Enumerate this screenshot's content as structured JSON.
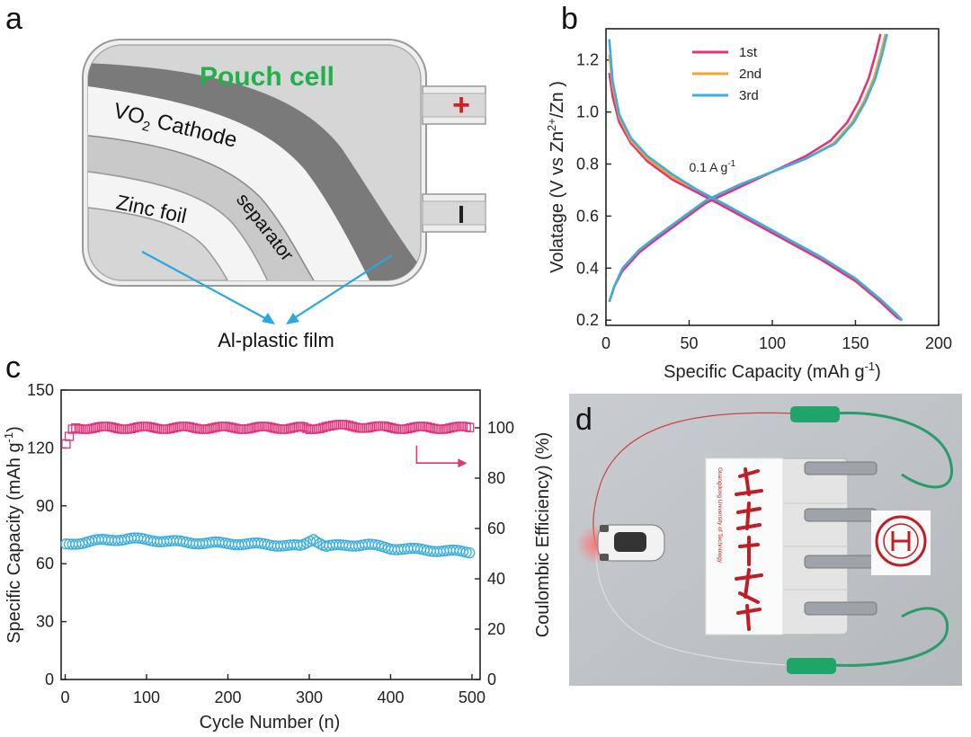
{
  "panels": {
    "a": "a",
    "b": "b",
    "c": "c",
    "d": "d"
  },
  "panel_a": {
    "title": "Pouch cell",
    "cathode_label": "VO",
    "cathode_sub": "2",
    "cathode_rest": " Cathode",
    "zinc_label": "Zinc foil",
    "separator_label": "separator",
    "film_label": "Al-plastic film",
    "plus_symbol": "+",
    "minus_symbol": "I",
    "colors": {
      "title": "#22b04b",
      "cathode": "#7a7a7a",
      "arrow": "#2aa7df",
      "plus": "#d42020"
    }
  },
  "panel_d": {
    "logo_text": "Guangdong University of Technology",
    "colors": {
      "clip": "#1fa56a",
      "wire": "#2a9b6a",
      "logo": "#c01d26"
    }
  },
  "chart_data": [
    {
      "type": "line",
      "panel": "b",
      "xlabel": "Specific Capacity (mAh g",
      "xlabel_sup": "-1",
      "xlabel_end": ")",
      "ylabel": "Volatage (V vs Zn",
      "ylabel_sup": "2+",
      "ylabel_end": "/Zn )",
      "xlim": [
        0,
        200
      ],
      "ylim": [
        0.18,
        1.32
      ],
      "xticks": [
        "0",
        "50",
        "100",
        "150",
        "200"
      ],
      "yticks": [
        "0.2",
        "0.4",
        "0.6",
        "0.8",
        "1.0",
        "1.2"
      ],
      "annotation": "0.1 A g",
      "annotation_sup": "-1",
      "annotation_pos": [
        50,
        0.77
      ],
      "legend_position": "top-center",
      "series": [
        {
          "name": "1st",
          "color": "#e0337a",
          "charge": [
            [
              2,
              0.27
            ],
            [
              5,
              0.33
            ],
            [
              10,
              0.39
            ],
            [
              20,
              0.46
            ],
            [
              30,
              0.51
            ],
            [
              45,
              0.58
            ],
            [
              60,
              0.65
            ],
            [
              80,
              0.71
            ],
            [
              100,
              0.77
            ],
            [
              120,
              0.83
            ],
            [
              135,
              0.89
            ],
            [
              145,
              0.96
            ],
            [
              152,
              1.04
            ],
            [
              158,
              1.13
            ],
            [
              162,
              1.22
            ],
            [
              165,
              1.3
            ]
          ],
          "discharge": [
            [
              2,
              1.15
            ],
            [
              4,
              1.06
            ],
            [
              8,
              0.96
            ],
            [
              15,
              0.88
            ],
            [
              25,
              0.81
            ],
            [
              40,
              0.74
            ],
            [
              55,
              0.69
            ],
            [
              70,
              0.64
            ],
            [
              90,
              0.57
            ],
            [
              110,
              0.5
            ],
            [
              130,
              0.43
            ],
            [
              150,
              0.35
            ],
            [
              165,
              0.27
            ],
            [
              175,
              0.21
            ],
            [
              178,
              0.2
            ]
          ]
        },
        {
          "name": "2nd",
          "color": "#f0a531",
          "charge": [
            [
              2,
              0.27
            ],
            [
              5,
              0.33
            ],
            [
              10,
              0.4
            ],
            [
              20,
              0.47
            ],
            [
              30,
              0.52
            ],
            [
              45,
              0.59
            ],
            [
              60,
              0.66
            ],
            [
              80,
              0.72
            ],
            [
              100,
              0.77
            ],
            [
              120,
              0.82
            ],
            [
              137,
              0.88
            ],
            [
              148,
              0.96
            ],
            [
              155,
              1.04
            ],
            [
              161,
              1.13
            ],
            [
              165,
              1.22
            ],
            [
              168,
              1.3
            ]
          ],
          "discharge": [
            [
              2,
              1.22
            ],
            [
              4,
              1.1
            ],
            [
              8,
              0.98
            ],
            [
              15,
              0.89
            ],
            [
              25,
              0.82
            ],
            [
              40,
              0.75
            ],
            [
              55,
              0.7
            ],
            [
              70,
              0.65
            ],
            [
              90,
              0.58
            ],
            [
              110,
              0.51
            ],
            [
              130,
              0.44
            ],
            [
              150,
              0.36
            ],
            [
              165,
              0.28
            ],
            [
              175,
              0.22
            ],
            [
              178,
              0.2
            ]
          ]
        },
        {
          "name": "3rd",
          "color": "#3aaee0",
          "charge": [
            [
              2,
              0.27
            ],
            [
              5,
              0.33
            ],
            [
              10,
              0.4
            ],
            [
              20,
              0.47
            ],
            [
              30,
              0.52
            ],
            [
              45,
              0.59
            ],
            [
              60,
              0.66
            ],
            [
              80,
              0.72
            ],
            [
              100,
              0.77
            ],
            [
              120,
              0.82
            ],
            [
              138,
              0.88
            ],
            [
              149,
              0.96
            ],
            [
              156,
              1.04
            ],
            [
              162,
              1.13
            ],
            [
              166,
              1.22
            ],
            [
              169,
              1.3
            ]
          ],
          "discharge": [
            [
              2,
              1.28
            ],
            [
              4,
              1.12
            ],
            [
              8,
              0.99
            ],
            [
              15,
              0.9
            ],
            [
              25,
              0.83
            ],
            [
              40,
              0.76
            ],
            [
              55,
              0.7
            ],
            [
              70,
              0.65
            ],
            [
              90,
              0.58
            ],
            [
              110,
              0.51
            ],
            [
              130,
              0.44
            ],
            [
              150,
              0.36
            ],
            [
              165,
              0.28
            ],
            [
              175,
              0.22
            ],
            [
              178,
              0.2
            ]
          ]
        }
      ]
    },
    {
      "type": "scatter",
      "panel": "c",
      "xlabel": "Cycle Number (n)",
      "ylabel": "Specific Capacity (mAh g",
      "ylabel_sup": "-1",
      "ylabel_end": ")",
      "y2label": "Coulombic Efficiency) (%)",
      "xlim": [
        -5,
        510
      ],
      "ylim": [
        0,
        150
      ],
      "y2lim": [
        0,
        115
      ],
      "xticks": [
        "0",
        "100",
        "200",
        "300",
        "400",
        "500"
      ],
      "yticks": [
        "0",
        "30",
        "60",
        "90",
        "120",
        "150"
      ],
      "y2ticks": [
        "0",
        "20",
        "40",
        "60",
        "80",
        "100"
      ],
      "series": [
        {
          "name": "Coulombic efficiency",
          "axis": "right",
          "color": "#e0337a",
          "marker": "square",
          "x_range": [
            1,
            500
          ],
          "step": 4,
          "profile": [
            [
              1,
              93
            ],
            [
              10,
              100
            ],
            [
              100,
              100
            ],
            [
              290,
              100
            ],
            [
              300,
              99
            ],
            [
              320,
              101
            ],
            [
              400,
              100
            ],
            [
              500,
              100
            ]
          ]
        },
        {
          "name": "Specific capacity",
          "axis": "left",
          "color": "#3aaee0",
          "marker": "circle",
          "x_range": [
            1,
            500
          ],
          "step": 4,
          "profile": [
            [
              1,
              70
            ],
            [
              40,
              72
            ],
            [
              80,
              73
            ],
            [
              150,
              71
            ],
            [
              250,
              70
            ],
            [
              290,
              69
            ],
            [
              305,
              73
            ],
            [
              320,
              69
            ],
            [
              370,
              70
            ],
            [
              400,
              68
            ],
            [
              450,
              67
            ],
            [
              500,
              66
            ]
          ]
        }
      ],
      "arrow_direction": "right"
    }
  ]
}
